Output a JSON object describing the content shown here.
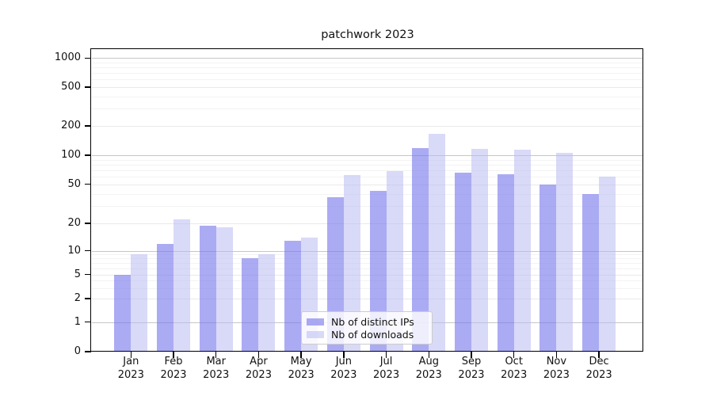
{
  "title": "patchwork 2023",
  "chart_data": {
    "type": "bar",
    "title": "patchwork 2023",
    "xlabel": "",
    "ylabel": "",
    "x_tick_year_line": "2023",
    "categories": [
      "Jan",
      "Feb",
      "Mar",
      "Apr",
      "May",
      "Jun",
      "Jul",
      "Aug",
      "Sep",
      "Oct",
      "Nov",
      "Dec"
    ],
    "series": [
      {
        "name": "Nb of distinct IPs",
        "color": "rgba(120,120,235,0.62)",
        "values": [
          5,
          12,
          19,
          8,
          13,
          37,
          43,
          118,
          66,
          63,
          50,
          40
        ]
      },
      {
        "name": "Nb of downloads",
        "color": "rgba(185,185,242,0.55)",
        "values": [
          9,
          22,
          18,
          9,
          14,
          62,
          68,
          165,
          117,
          115,
          105,
          60
        ]
      }
    ],
    "yscale": "symlog",
    "yticks": [
      0,
      1,
      2,
      5,
      10,
      20,
      50,
      100,
      200,
      500,
      1000
    ],
    "major_grid_values": [
      1,
      10,
      100,
      1000
    ],
    "minor_grid_values": [
      3,
      4,
      6,
      7,
      8,
      9,
      30,
      40,
      60,
      70,
      80,
      90,
      300,
      400,
      600,
      700,
      800,
      900
    ],
    "grid": true,
    "legend_position": "lower center"
  }
}
